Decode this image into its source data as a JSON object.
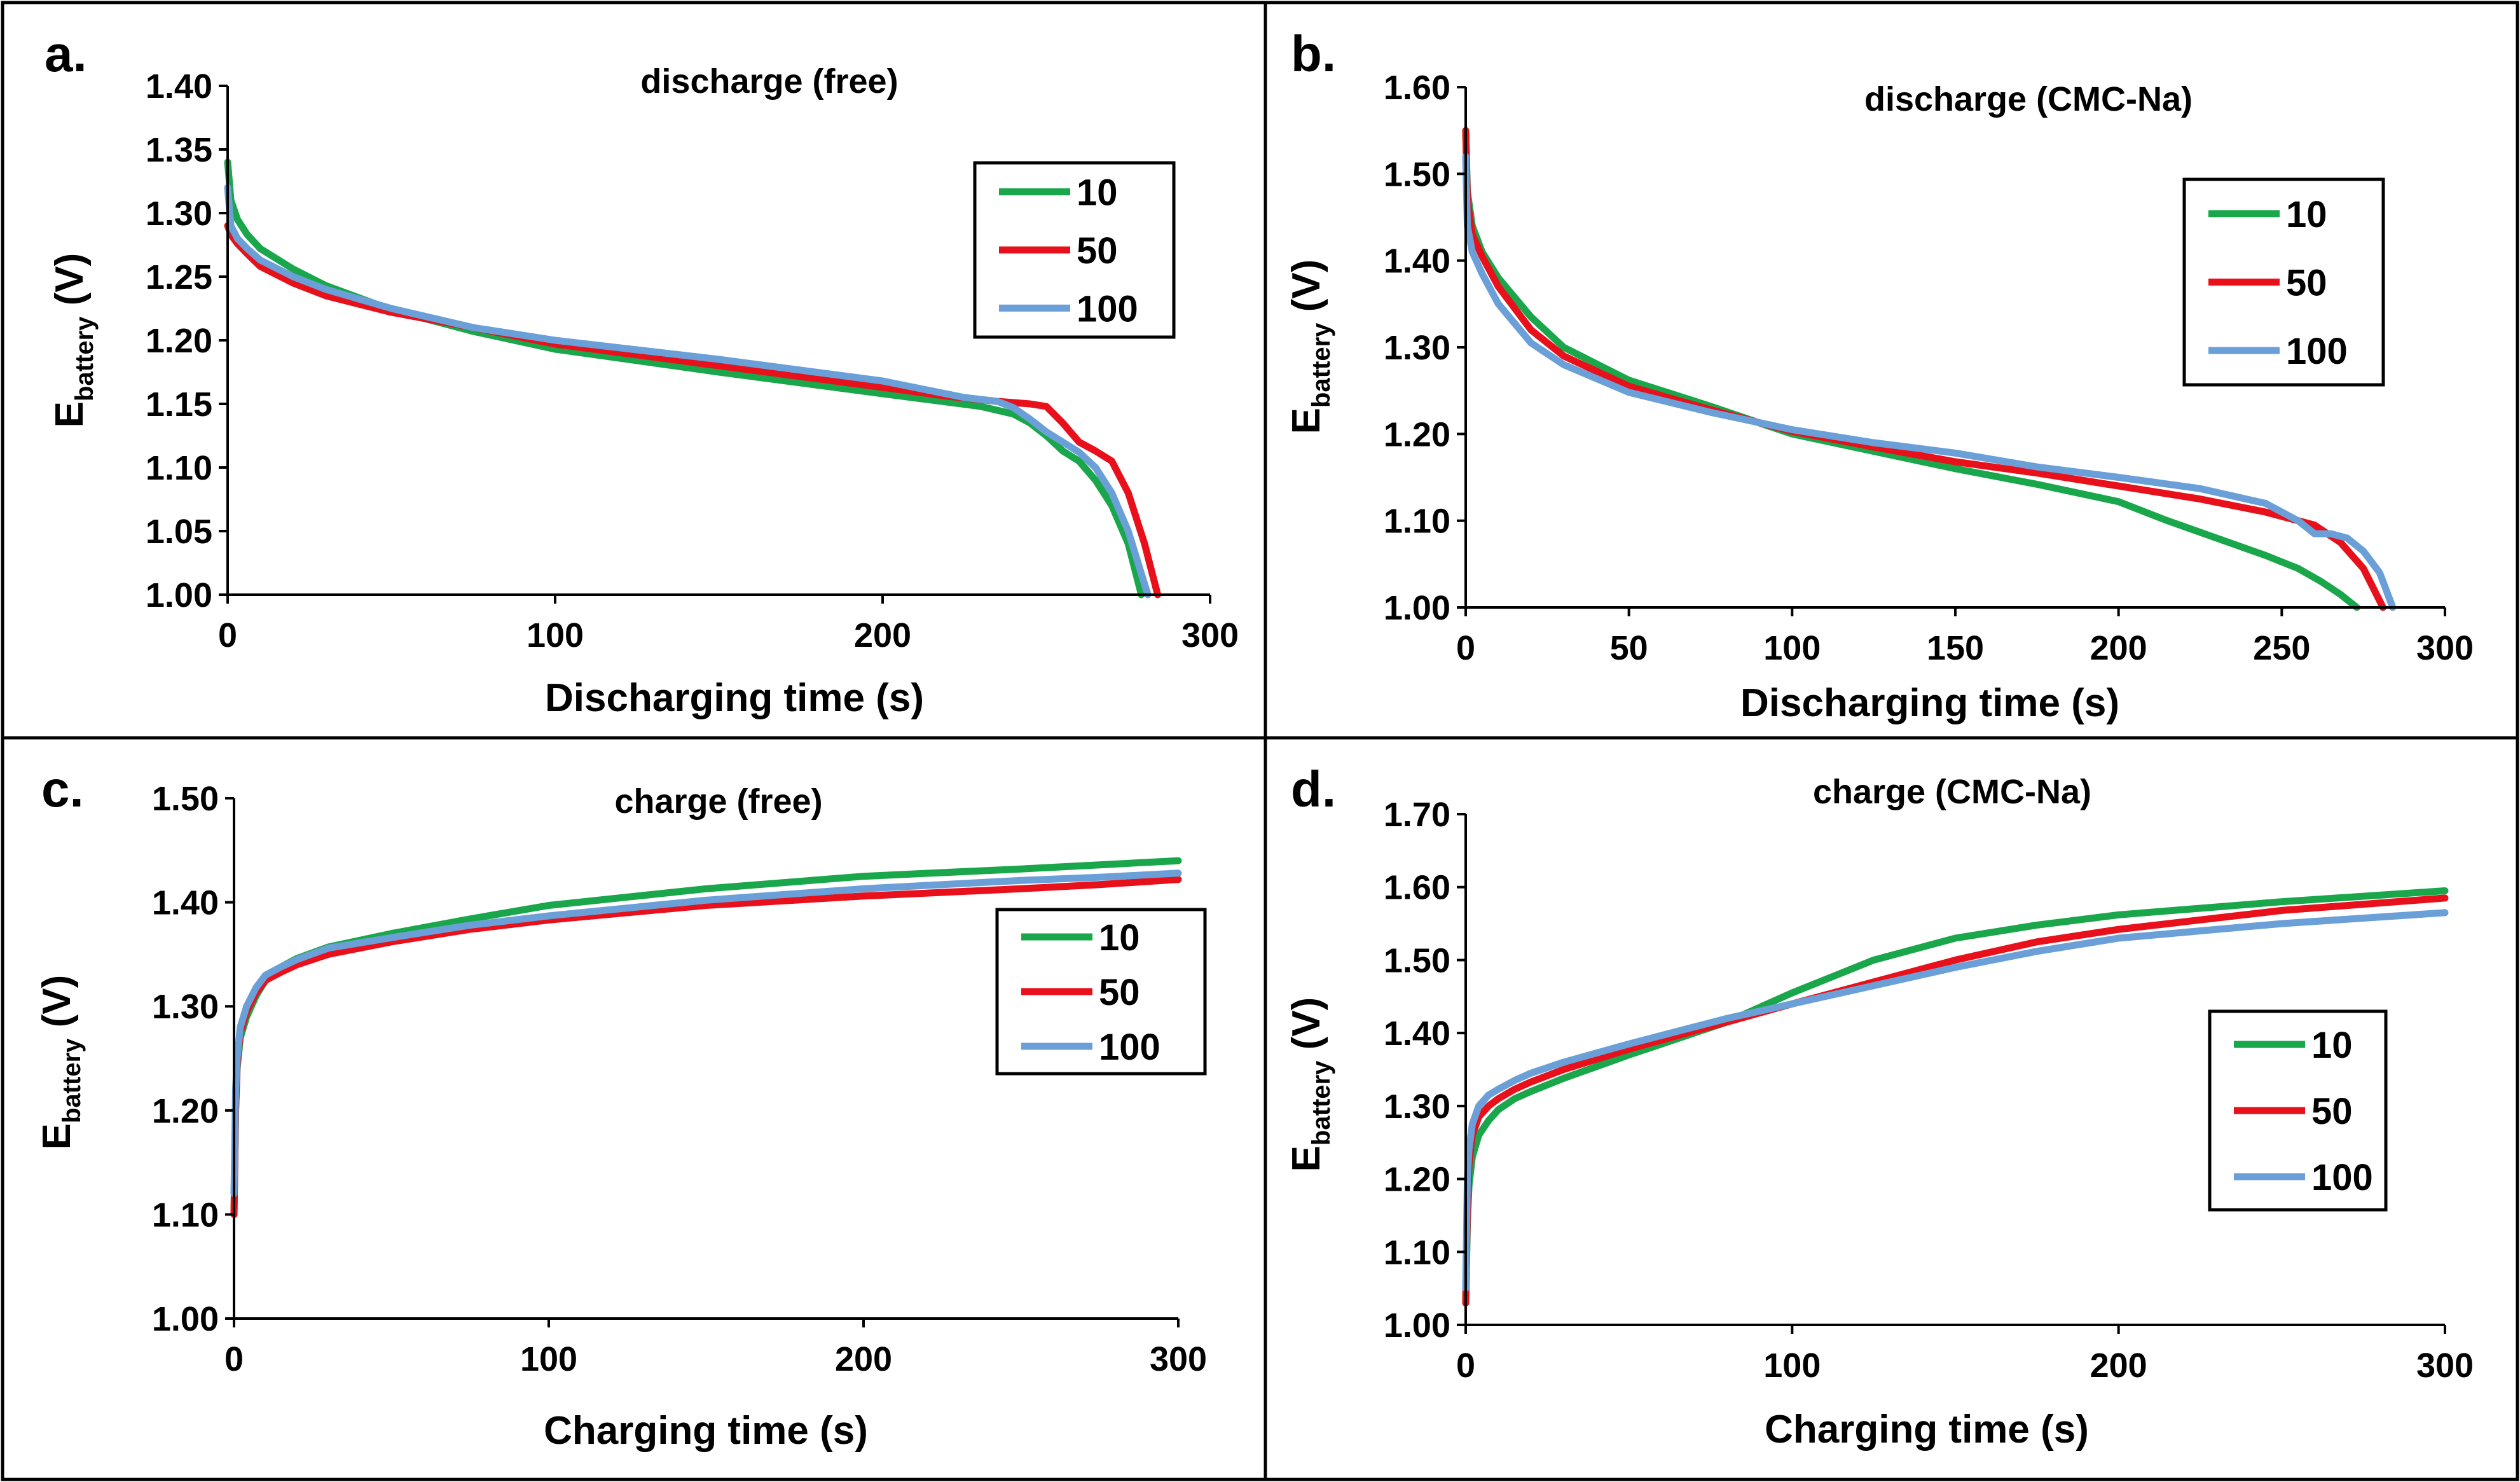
{
  "colors": {
    "10": "#1aa64b",
    "50": "#e8101a",
    "100": "#6a9fd8"
  },
  "chart_data": [
    {
      "type": "line",
      "panel_letter": "a.",
      "title": "discharge (free)",
      "xlabel": "Discharging time  (s)",
      "ylabel_main": "E",
      "ylabel_sub": "battery",
      "ylabel_unit": " (V)",
      "xlim": [
        0,
        300
      ],
      "ylim": [
        1.0,
        1.4
      ],
      "xticks": [
        "0",
        "100",
        "200",
        "300"
      ],
      "yticks": [
        "1.00",
        "1.05",
        "1.10",
        "1.15",
        "1.20",
        "1.25",
        "1.30",
        "1.35",
        "1.40"
      ],
      "legend_position": "top-right",
      "series": [
        {
          "name": "10",
          "x": [
            0,
            1,
            3,
            6,
            10,
            20,
            30,
            50,
            75,
            100,
            150,
            200,
            230,
            240,
            245,
            250,
            255,
            260,
            265,
            270,
            275,
            279
          ],
          "y": [
            1.34,
            1.31,
            1.295,
            1.283,
            1.272,
            1.256,
            1.243,
            1.224,
            1.207,
            1.193,
            1.175,
            1.158,
            1.148,
            1.142,
            1.135,
            1.125,
            1.113,
            1.105,
            1.09,
            1.07,
            1.04,
            1.0
          ]
        },
        {
          "name": "50",
          "x": [
            0,
            1,
            3,
            6,
            10,
            20,
            30,
            50,
            75,
            100,
            150,
            200,
            220,
            235,
            245,
            250,
            255,
            260,
            265,
            270,
            275,
            280,
            284
          ],
          "y": [
            1.29,
            1.283,
            1.276,
            1.268,
            1.258,
            1.245,
            1.235,
            1.222,
            1.21,
            1.197,
            1.18,
            1.163,
            1.156,
            1.152,
            1.15,
            1.148,
            1.135,
            1.12,
            1.113,
            1.105,
            1.08,
            1.04,
            1.0
          ]
        },
        {
          "name": "100",
          "x": [
            0,
            1,
            3,
            6,
            10,
            20,
            30,
            50,
            75,
            100,
            150,
            200,
            225,
            235,
            240,
            245,
            250,
            255,
            260,
            265,
            270,
            275,
            281
          ],
          "y": [
            1.32,
            1.29,
            1.28,
            1.272,
            1.263,
            1.25,
            1.24,
            1.225,
            1.21,
            1.2,
            1.185,
            1.168,
            1.155,
            1.152,
            1.147,
            1.138,
            1.128,
            1.12,
            1.112,
            1.1,
            1.08,
            1.05,
            1.0
          ]
        }
      ]
    },
    {
      "type": "line",
      "panel_letter": "b.",
      "title": "discharge (CMC-Na)",
      "xlabel": "Discharging time  (s)",
      "ylabel_main": "E",
      "ylabel_sub": "battery",
      "ylabel_unit": " (V)",
      "xlim": [
        0,
        300
      ],
      "ylim": [
        1.0,
        1.6
      ],
      "xticks": [
        "0",
        "50",
        "100",
        "150",
        "200",
        "250",
        "300"
      ],
      "yticks": [
        "1.00",
        "1.10",
        "1.20",
        "1.30",
        "1.40",
        "1.50",
        "1.60"
      ],
      "legend_position": "top-right",
      "series": [
        {
          "name": "10",
          "x": [
            0,
            0.5,
            2,
            5,
            10,
            20,
            30,
            50,
            75,
            100,
            125,
            150,
            175,
            200,
            215,
            230,
            245,
            255,
            262,
            268,
            273
          ],
          "y": [
            1.55,
            1.48,
            1.44,
            1.41,
            1.38,
            1.335,
            1.3,
            1.262,
            1.232,
            1.2,
            1.18,
            1.16,
            1.142,
            1.122,
            1.1,
            1.08,
            1.06,
            1.045,
            1.03,
            1.015,
            1.0
          ]
        },
        {
          "name": "50",
          "x": [
            0,
            0.5,
            2,
            5,
            10,
            20,
            30,
            50,
            75,
            100,
            125,
            150,
            175,
            200,
            225,
            245,
            260,
            268,
            275,
            281
          ],
          "y": [
            1.55,
            1.47,
            1.43,
            1.405,
            1.37,
            1.32,
            1.29,
            1.255,
            1.228,
            1.203,
            1.185,
            1.168,
            1.155,
            1.14,
            1.125,
            1.11,
            1.095,
            1.075,
            1.045,
            1.0
          ]
        },
        {
          "name": "100",
          "x": [
            0,
            0.5,
            2,
            5,
            10,
            20,
            30,
            50,
            75,
            100,
            125,
            150,
            175,
            200,
            225,
            245,
            255,
            260,
            265,
            270,
            275,
            280,
            284
          ],
          "y": [
            1.52,
            1.44,
            1.41,
            1.385,
            1.35,
            1.305,
            1.28,
            1.248,
            1.225,
            1.205,
            1.19,
            1.178,
            1.162,
            1.15,
            1.137,
            1.12,
            1.1,
            1.085,
            1.085,
            1.08,
            1.065,
            1.04,
            1.0
          ]
        }
      ]
    },
    {
      "type": "line",
      "panel_letter": "c.",
      "title": "charge (free)",
      "xlabel": "Charging time  (s)",
      "ylabel_main": "E",
      "ylabel_sub": "battery",
      "ylabel_unit": " (V)",
      "xlim": [
        0,
        300
      ],
      "ylim": [
        1.0,
        1.5
      ],
      "xticks": [
        "0",
        "100",
        "200",
        "300"
      ],
      "yticks": [
        "1.00",
        "1.10",
        "1.20",
        "1.30",
        "1.40",
        "1.50"
      ],
      "legend_position": "right",
      "series": [
        {
          "name": "10",
          "x": [
            0,
            0.5,
            1,
            2,
            4,
            7,
            10,
            15,
            20,
            30,
            50,
            75,
            100,
            150,
            200,
            250,
            275,
            300
          ],
          "y": [
            1.1,
            1.2,
            1.24,
            1.27,
            1.29,
            1.31,
            1.325,
            1.338,
            1.346,
            1.357,
            1.37,
            1.384,
            1.397,
            1.413,
            1.425,
            1.432,
            1.436,
            1.44
          ]
        },
        {
          "name": "50",
          "x": [
            0,
            0.5,
            1,
            2,
            4,
            7,
            10,
            15,
            20,
            30,
            50,
            75,
            100,
            150,
            200,
            250,
            275,
            300
          ],
          "y": [
            1.1,
            1.2,
            1.245,
            1.275,
            1.295,
            1.313,
            1.325,
            1.333,
            1.34,
            1.35,
            1.362,
            1.374,
            1.383,
            1.397,
            1.406,
            1.413,
            1.417,
            1.422
          ]
        },
        {
          "name": "100",
          "x": [
            0,
            0.5,
            1,
            2,
            4,
            7,
            10,
            15,
            20,
            30,
            50,
            75,
            100,
            150,
            200,
            250,
            275,
            300
          ],
          "y": [
            1.12,
            1.22,
            1.25,
            1.28,
            1.3,
            1.318,
            1.33,
            1.338,
            1.345,
            1.356,
            1.366,
            1.378,
            1.387,
            1.402,
            1.413,
            1.421,
            1.424,
            1.428
          ]
        }
      ]
    },
    {
      "type": "line",
      "panel_letter": "d.",
      "title": "charge (CMC-Na)",
      "xlabel": "Charging time  (s)",
      "ylabel_main": "E",
      "ylabel_sub": "battery",
      "ylabel_unit": " (V)",
      "xlim": [
        0,
        300
      ],
      "ylim": [
        1.0,
        1.7
      ],
      "xticks": [
        "0",
        "100",
        "200",
        "300"
      ],
      "yticks": [
        "1.00",
        "1.10",
        "1.20",
        "1.30",
        "1.40",
        "1.50",
        "1.60",
        "1.70"
      ],
      "legend_position": "right",
      "series": [
        {
          "name": "10",
          "x": [
            0,
            0.5,
            1,
            2,
            4,
            7,
            10,
            15,
            20,
            30,
            50,
            80,
            100,
            125,
            150,
            175,
            200,
            250,
            300
          ],
          "y": [
            1.03,
            1.14,
            1.19,
            1.23,
            1.26,
            1.28,
            1.295,
            1.31,
            1.32,
            1.338,
            1.37,
            1.415,
            1.455,
            1.5,
            1.53,
            1.548,
            1.562,
            1.58,
            1.595
          ]
        },
        {
          "name": "50",
          "x": [
            0,
            0.5,
            1,
            2,
            4,
            7,
            10,
            15,
            20,
            30,
            50,
            80,
            100,
            125,
            150,
            175,
            200,
            250,
            300
          ],
          "y": [
            1.03,
            1.16,
            1.22,
            1.26,
            1.285,
            1.3,
            1.31,
            1.323,
            1.333,
            1.35,
            1.378,
            1.415,
            1.44,
            1.47,
            1.5,
            1.525,
            1.542,
            1.568,
            1.585
          ]
        },
        {
          "name": "100",
          "x": [
            0,
            0.5,
            1,
            2,
            4,
            7,
            10,
            15,
            20,
            30,
            50,
            80,
            100,
            125,
            150,
            175,
            200,
            250,
            300
          ],
          "y": [
            1.05,
            1.2,
            1.24,
            1.275,
            1.3,
            1.315,
            1.323,
            1.335,
            1.345,
            1.36,
            1.385,
            1.42,
            1.44,
            1.465,
            1.49,
            1.512,
            1.53,
            1.55,
            1.565
          ]
        }
      ]
    }
  ]
}
